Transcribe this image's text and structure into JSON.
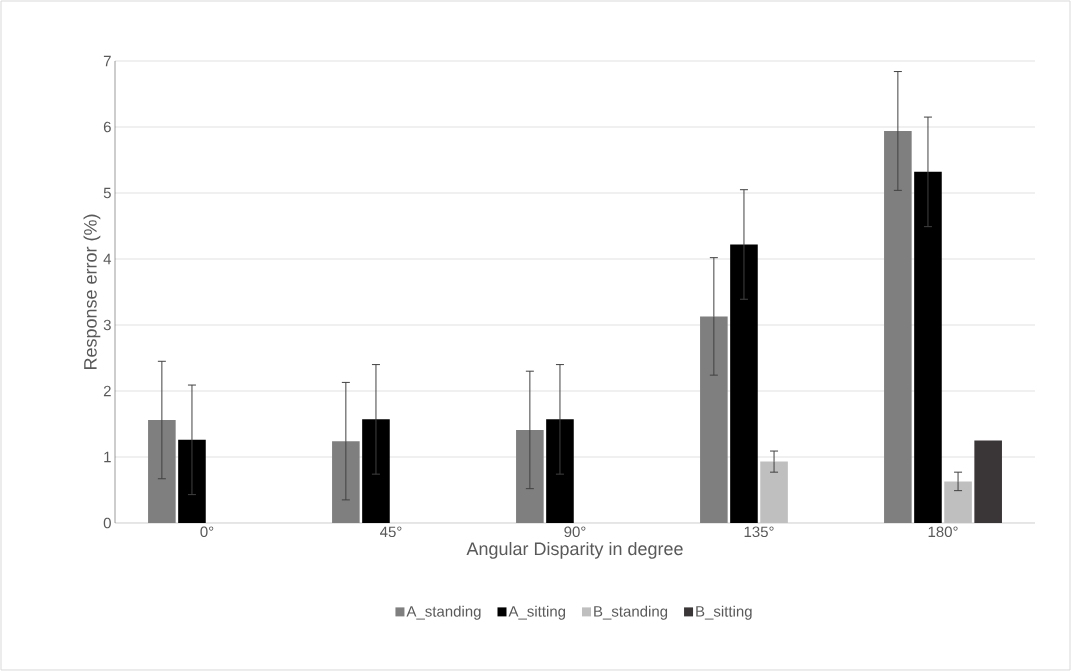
{
  "chart_data": {
    "type": "bar",
    "xlabel": "Angular Disparity in degree",
    "ylabel": "Response error (%)",
    "categories": [
      "0°",
      "45°",
      "90°",
      "135°",
      "180°"
    ],
    "series": [
      {
        "name": "A_standing",
        "color": "#7f7f7f",
        "values": [
          1.56,
          1.24,
          1.41,
          3.13,
          5.94
        ],
        "errors": [
          0.89,
          0.89,
          0.89,
          0.89,
          0.9
        ]
      },
      {
        "name": "A_sitting",
        "color": "#000000",
        "values": [
          1.26,
          1.57,
          1.57,
          4.22,
          5.32
        ],
        "errors": [
          0.83,
          0.83,
          0.83,
          0.83,
          0.83
        ]
      },
      {
        "name": "B_standing",
        "color": "#bfbfbf",
        "values": [
          null,
          null,
          null,
          0.93,
          0.63
        ],
        "errors": [
          null,
          null,
          null,
          0.16,
          0.14
        ]
      },
      {
        "name": "B_sitting",
        "color": "#3a3536",
        "values": [
          null,
          null,
          null,
          null,
          1.25
        ]
      }
    ],
    "ylim": [
      0,
      7
    ],
    "yticks": [
      0,
      1,
      2,
      3,
      4,
      5,
      6,
      7
    ],
    "grid": "y",
    "legend": "bottom"
  }
}
